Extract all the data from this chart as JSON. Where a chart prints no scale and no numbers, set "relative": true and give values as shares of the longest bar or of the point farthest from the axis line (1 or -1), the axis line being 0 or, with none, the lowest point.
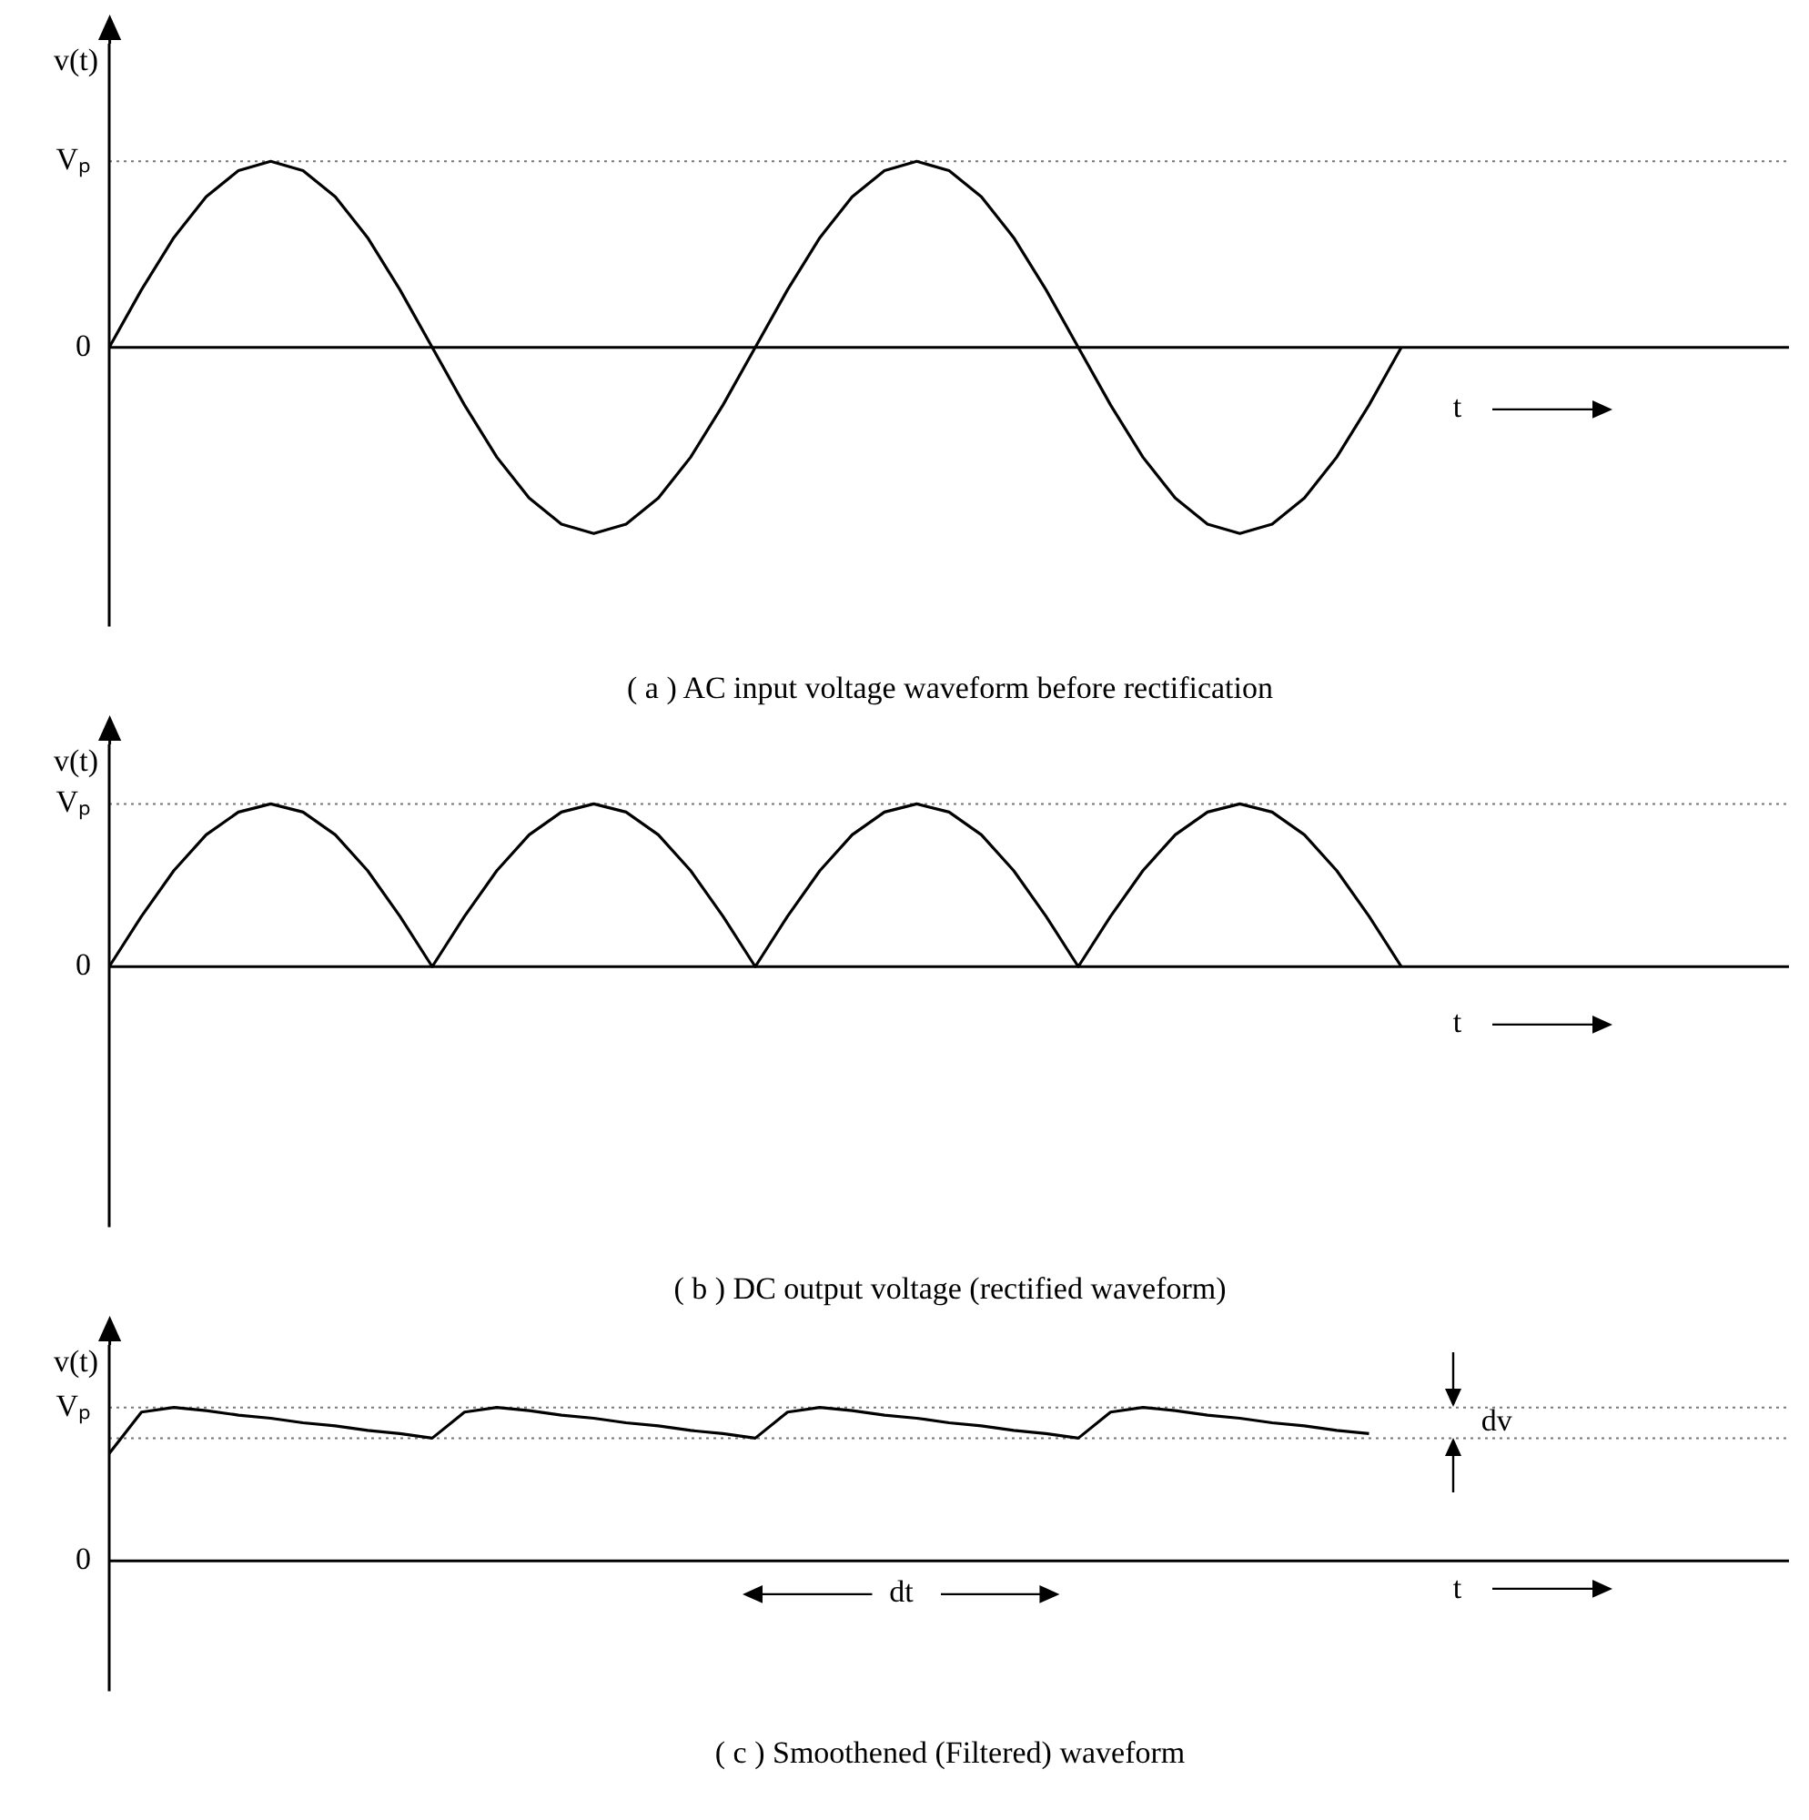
{
  "chart_data": [
    {
      "type": "line",
      "title": "( a ) AC input voltage waveform before rectification",
      "xlabel": "t",
      "ylabel": "v(t)",
      "relative": true,
      "legend": false,
      "categories": [
        null,
        null,
        null,
        null,
        null,
        null,
        null,
        null,
        null,
        null,
        null,
        null,
        null,
        null,
        null,
        null,
        null,
        null,
        null,
        null,
        null,
        null,
        null,
        null,
        null,
        null,
        null,
        null,
        null,
        null,
        null,
        null,
        null,
        null,
        null,
        null,
        null,
        null,
        null,
        null,
        null,
        null,
        null,
        null,
        null,
        null,
        null,
        null,
        null,
        null,
        null,
        null,
        null
      ],
      "series": [
        {
          "color": "#000000",
          "values": [
            0,
            0.31,
            0.59,
            0.81,
            0.95,
            1,
            0.95,
            0.81,
            0.59,
            0.31,
            0,
            -0.31,
            -0.59,
            -0.81,
            -0.95,
            -1,
            -0.95,
            -0.81,
            -0.59,
            -0.31,
            0,
            0.31,
            0.59,
            0.81,
            0.95,
            1,
            0.95,
            0.81,
            0.59,
            0.31,
            0,
            -0.31,
            -0.59,
            -0.81,
            -0.95,
            -1,
            -0.95,
            -0.81,
            -0.59,
            -0.31,
            0,
            null,
            null,
            null,
            null,
            null,
            null,
            null,
            null,
            null,
            null,
            null,
            null
          ]
        }
      ],
      "ref_lines": [
        {
          "axis": "y",
          "value": 0,
          "label": "0",
          "line_style": "solid",
          "color": "#000000"
        },
        {
          "axis": "y",
          "value": 1,
          "label": "Vₚ",
          "line_style": "dotted",
          "color": "#777777"
        }
      ]
    },
    {
      "type": "line",
      "title": "( b ) DC output voltage (rectified waveform)",
      "xlabel": "t",
      "ylabel": "v(t)",
      "relative": true,
      "legend": false,
      "categories": [
        null,
        null,
        null,
        null,
        null,
        null,
        null,
        null,
        null,
        null,
        null,
        null,
        null,
        null,
        null,
        null,
        null,
        null,
        null,
        null,
        null,
        null,
        null,
        null,
        null,
        null,
        null,
        null,
        null,
        null,
        null,
        null,
        null,
        null,
        null,
        null,
        null,
        null,
        null,
        null,
        null,
        null,
        null,
        null,
        null,
        null,
        null,
        null,
        null,
        null,
        null,
        null,
        null
      ],
      "series": [
        {
          "color": "#000000",
          "values": [
            0,
            0.31,
            0.59,
            0.81,
            0.95,
            1,
            0.95,
            0.81,
            0.59,
            0.31,
            0,
            0.31,
            0.59,
            0.81,
            0.95,
            1,
            0.95,
            0.81,
            0.59,
            0.31,
            0,
            0.31,
            0.59,
            0.81,
            0.95,
            1,
            0.95,
            0.81,
            0.59,
            0.31,
            0,
            0.31,
            0.59,
            0.81,
            0.95,
            1,
            0.95,
            0.81,
            0.59,
            0.31,
            0,
            null,
            null,
            null,
            null,
            null,
            null,
            null,
            null,
            null,
            null,
            null,
            null
          ]
        }
      ],
      "ref_lines": [
        {
          "axis": "y",
          "value": 0,
          "label": "0",
          "line_style": "solid",
          "color": "#000000"
        },
        {
          "axis": "y",
          "value": 1,
          "label": "Vₚ",
          "line_style": "dotted",
          "color": "#777777"
        }
      ]
    },
    {
      "type": "line",
      "title": "( c ) Smoothened (Filtered) waveform",
      "xlabel": "t",
      "ylabel": "v(t)",
      "relative": true,
      "legend": false,
      "categories": [
        null,
        null,
        null,
        null,
        null,
        null,
        null,
        null,
        null,
        null,
        null,
        null,
        null,
        null,
        null,
        null,
        null,
        null,
        null,
        null,
        null,
        null,
        null,
        null,
        null,
        null,
        null,
        null,
        null,
        null,
        null,
        null,
        null,
        null,
        null,
        null,
        null,
        null,
        null,
        null,
        null,
        null,
        null,
        null,
        null,
        null,
        null,
        null,
        null,
        null,
        null,
        null,
        null
      ],
      "series": [
        {
          "color": "#000000",
          "values": [
            0.7,
            0.97,
            1,
            0.98,
            0.95,
            0.93,
            0.9,
            0.88,
            0.85,
            0.83,
            0.8,
            0.97,
            1,
            0.98,
            0.95,
            0.93,
            0.9,
            0.88,
            0.85,
            0.83,
            0.8,
            0.97,
            1,
            0.98,
            0.95,
            0.93,
            0.9,
            0.88,
            0.85,
            0.83,
            0.8,
            0.97,
            1,
            0.98,
            0.95,
            0.93,
            0.9,
            0.88,
            0.85,
            0.83,
            null,
            null,
            null,
            null,
            null,
            null,
            null,
            null,
            null,
            null,
            null,
            null,
            null
          ]
        }
      ],
      "ref_lines": [
        {
          "axis": "y",
          "value": 0,
          "label": "0",
          "line_style": "solid",
          "color": "#000000"
        },
        {
          "axis": "y",
          "value": 1,
          "label": "Vₚ",
          "line_style": "dotted",
          "color": "#777777"
        },
        {
          "axis": "y",
          "value": 0.8,
          "line_style": "dotted",
          "color": "#777777"
        }
      ],
      "annotations": [
        "dt",
        "dv"
      ]
    }
  ]
}
